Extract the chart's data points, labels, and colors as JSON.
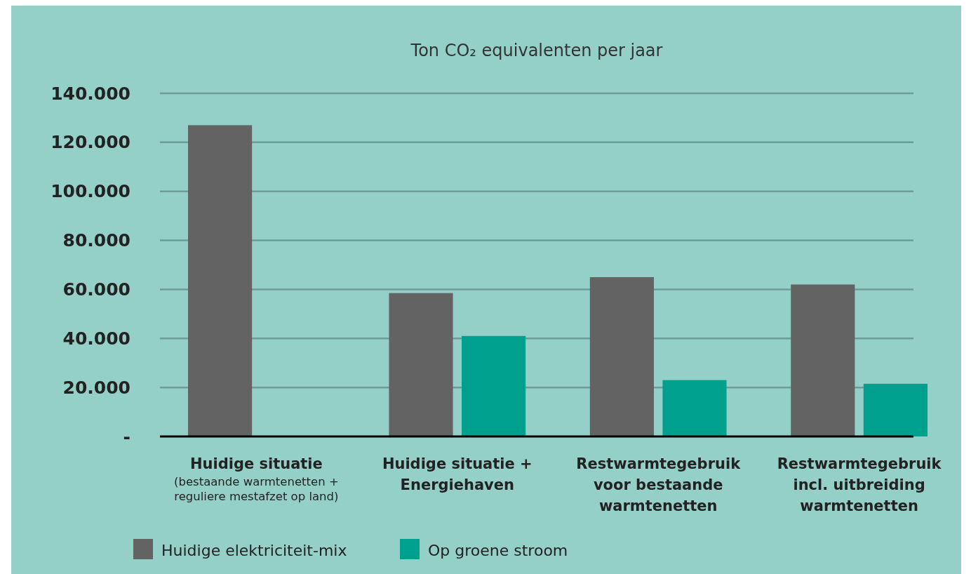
{
  "chart_data": {
    "type": "bar",
    "title": "Ton CO₂ equivalenten per jaar",
    "categories": [
      "Huidige situatie\n(bestaande warmtenetten + reguliere mestafzet op land)",
      "Huidige situatie + Energiehaven",
      "Restwarmtegebruik voor bestaande warmtenetten",
      "Restwarmtegebruik incl. uitbreiding warmtenetten"
    ],
    "series": [
      {
        "name": "Huidige elektriciteit-mix",
        "color": "#636363",
        "values": [
          127000,
          58500,
          65000,
          62000
        ]
      },
      {
        "name": "Op groene stroom",
        "color": "#00a08e",
        "values": [
          null,
          41000,
          23000,
          21500
        ]
      }
    ],
    "ylim": [
      0,
      140000
    ],
    "yticks": [
      {
        "value": 0,
        "label": "-"
      },
      {
        "value": 20000,
        "label": "20.000"
      },
      {
        "value": 40000,
        "label": "40.000"
      },
      {
        "value": 60000,
        "label": "60.000"
      },
      {
        "value": 80000,
        "label": "80.000"
      },
      {
        "value": 100000,
        "label": "100.000"
      },
      {
        "value": 120000,
        "label": "120.000"
      },
      {
        "value": 140000,
        "label": "140.000"
      }
    ],
    "grid": "y",
    "legend": "bottom left"
  }
}
